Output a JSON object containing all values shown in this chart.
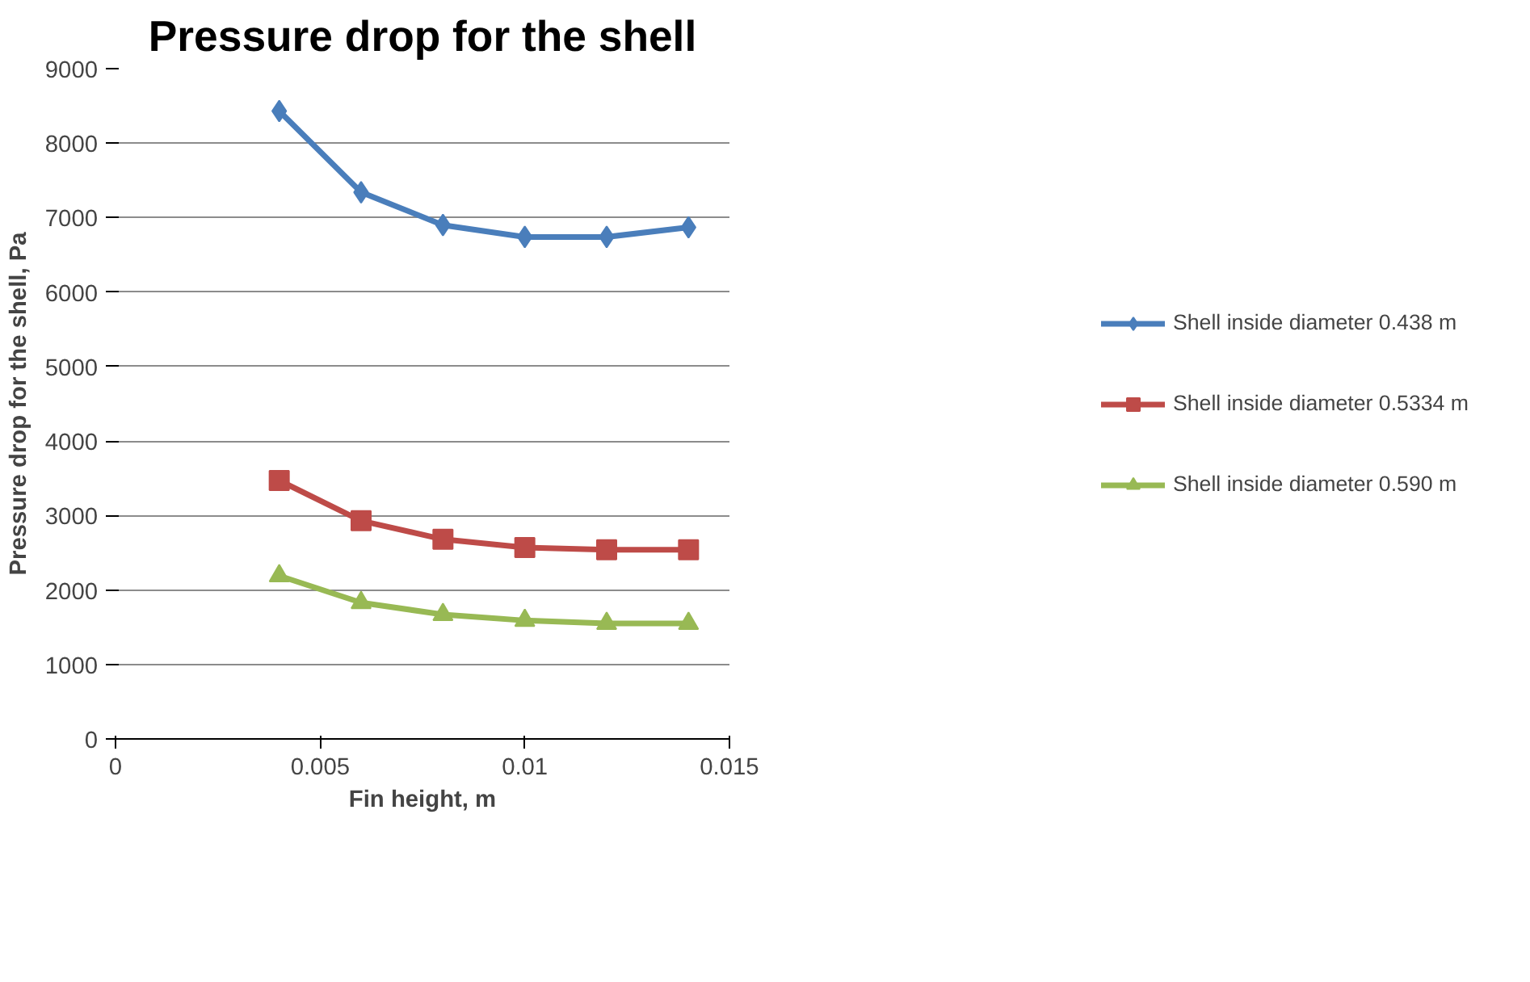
{
  "chart_data": {
    "type": "line",
    "title": "Pressure drop for the shell",
    "xlabel": "Fin height, m",
    "ylabel": "Pressure drop for the shell, Pa",
    "x": [
      0.004,
      0.006,
      0.008,
      0.01,
      0.012,
      0.014
    ],
    "series": [
      {
        "name": "Shell inside diameter 0.438 m",
        "color": "#4a7ebb",
        "marker": "diamond",
        "values": [
          8430,
          7340,
          6900,
          6740,
          6740,
          6870
        ]
      },
      {
        "name": "Shell inside diameter 0.5334 m",
        "color": "#be4b48",
        "marker": "square",
        "values": [
          3470,
          2930,
          2680,
          2570,
          2540,
          2540
        ]
      },
      {
        "name": "Shell inside diameter 0.590 m",
        "color": "#98b954",
        "marker": "triangle",
        "values": [
          2190,
          1830,
          1670,
          1590,
          1550,
          1550
        ]
      }
    ],
    "xlim": [
      0,
      0.015
    ],
    "xticks": [
      0,
      0.005,
      0.01,
      0.015
    ],
    "ylim": [
      0,
      9000
    ],
    "yticks": [
      0,
      1000,
      2000,
      3000,
      4000,
      5000,
      6000,
      7000,
      8000,
      9000
    ],
    "grid": "y",
    "legend": "right",
    "line_style": "solid"
  }
}
